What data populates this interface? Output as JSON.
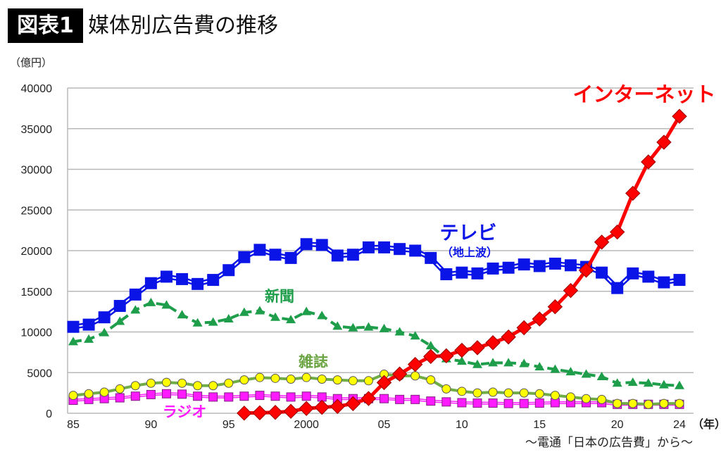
{
  "header": {
    "badge": "図表1",
    "title": "媒体別広告費の推移"
  },
  "source": "～電通「日本の広告費」から～",
  "chart_data": {
    "type": "line",
    "title": "媒体別広告費の推移",
    "ylabel": "（億円）",
    "xlabel": "（年）",
    "ylim": [
      0,
      40000
    ],
    "yticks": [
      "0",
      "5000",
      "10000",
      "15000",
      "20000",
      "25000",
      "30000",
      "35000",
      "40000"
    ],
    "xticks": [
      {
        "year": 1985,
        "label": "85"
      },
      {
        "year": 1990,
        "label": "90"
      },
      {
        "year": 1995,
        "label": "95"
      },
      {
        "year": 2000,
        "label": "2000"
      },
      {
        "year": 2005,
        "label": "05"
      },
      {
        "year": 2010,
        "label": "10"
      },
      {
        "year": 2015,
        "label": "15"
      },
      {
        "year": 2020,
        "label": "20"
      },
      {
        "year": 2024,
        "label": "24"
      }
    ],
    "grid": true,
    "x": [
      1985,
      1986,
      1987,
      1988,
      1989,
      1990,
      1991,
      1992,
      1993,
      1994,
      1995,
      1996,
      1997,
      1998,
      1999,
      2000,
      2001,
      2002,
      2003,
      2004,
      2005,
      2006,
      2007,
      2008,
      2009,
      2010,
      2011,
      2012,
      2013,
      2014,
      2015,
      2016,
      2017,
      2018,
      2019,
      2020,
      2021,
      2022,
      2023,
      2024
    ],
    "series": [
      {
        "name": "テレビ",
        "sub": "（地上波）",
        "color": "#0a14e6",
        "marker": "square",
        "values": [
          10630,
          10900,
          11800,
          13200,
          14600,
          16000,
          16800,
          16500,
          15900,
          16400,
          17600,
          19200,
          20100,
          19500,
          19100,
          20800,
          20700,
          19400,
          19500,
          20400,
          20400,
          20200,
          20000,
          19100,
          17100,
          17300,
          17200,
          17800,
          17900,
          18300,
          18100,
          18400,
          18200,
          18000,
          17300,
          15400,
          17200,
          16800,
          16100,
          16400
        ]
      },
      {
        "name": "新聞",
        "color": "#1e9e4a",
        "marker": "triangle",
        "values": [
          8800,
          9100,
          9900,
          11300,
          12700,
          13600,
          13300,
          12100,
          11100,
          11200,
          11600,
          12400,
          12600,
          11800,
          11500,
          12500,
          12000,
          10700,
          10500,
          10600,
          10400,
          10000,
          9500,
          8300,
          6700,
          6400,
          6000,
          6200,
          6200,
          6100,
          5700,
          5400,
          5100,
          4800,
          4500,
          3700,
          3800,
          3700,
          3500,
          3400
        ]
      },
      {
        "name": "雑誌",
        "color": "#70ad47",
        "marker": "circle",
        "values": [
          2200,
          2400,
          2600,
          3000,
          3400,
          3700,
          3800,
          3700,
          3400,
          3400,
          3700,
          4100,
          4400,
          4300,
          4200,
          4400,
          4200,
          4100,
          4000,
          4000,
          4800,
          4600,
          4600,
          4100,
          3000,
          2700,
          2500,
          2600,
          2500,
          2500,
          2400,
          2200,
          2000,
          1800,
          1700,
          1200,
          1200,
          1100,
          1200,
          1200
        ]
      },
      {
        "name": "ラジオ",
        "color": "#ff1aff",
        "marker": "square",
        "values": [
          1600,
          1700,
          1800,
          1900,
          2100,
          2300,
          2400,
          2350,
          2100,
          2000,
          2000,
          2100,
          2200,
          2100,
          2000,
          2100,
          2000,
          1800,
          1800,
          1800,
          1800,
          1700,
          1700,
          1500,
          1400,
          1300,
          1250,
          1250,
          1200,
          1200,
          1250,
          1300,
          1300,
          1300,
          1300,
          1100,
          1100,
          1100,
          1100,
          1100
        ]
      },
      {
        "name": "インターネット",
        "color": "#ff0000",
        "marker": "diamond",
        "values": [
          null,
          null,
          null,
          null,
          null,
          null,
          null,
          null,
          null,
          null,
          null,
          16,
          60,
          114,
          241,
          590,
          735,
          845,
          1183,
          1814,
          3777,
          4826,
          6003,
          6983,
          7069,
          7747,
          8062,
          8680,
          9381,
          10519,
          11594,
          13100,
          15094,
          17589,
          21048,
          22290,
          27052,
          30912,
          33330,
          36517
        ]
      }
    ]
  }
}
